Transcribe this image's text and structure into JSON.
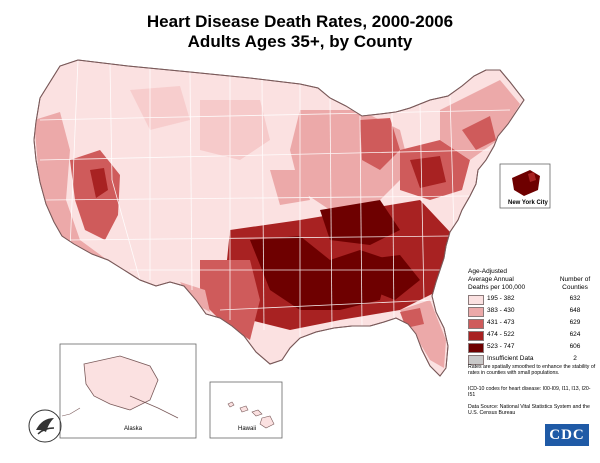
{
  "title_line1": "Heart Disease Death Rates, 2000-2006",
  "title_line2": "Adults Ages 35+, by County",
  "legend": {
    "header_left": [
      "Age-Adjusted",
      "Average Annual",
      "Deaths per 100,000"
    ],
    "header_right": [
      "Number of",
      "Counties"
    ],
    "rows": [
      {
        "range": "195 - 382",
        "count": "632",
        "color": "#fbe1e1"
      },
      {
        "range": "383 - 430",
        "count": "648",
        "color": "#eca9a9"
      },
      {
        "range": "431 - 473",
        "count": "629",
        "color": "#cf5b5b"
      },
      {
        "range": "474 - 522",
        "count": "624",
        "color": "#a82222"
      },
      {
        "range": "523 - 747",
        "count": "606",
        "color": "#6e0000"
      },
      {
        "range": "Insufficient Data",
        "count": "2",
        "color": "#c9c9c9"
      }
    ]
  },
  "notes": {
    "note1": "Rates are spatially smoothed to enhance the stability of rates in counties with small populations.",
    "note2": "ICD-10 codes for heart disease: I00-I09, I11, I13, I20-I51",
    "note3": "Data Source: National Vital Statistics System and the U.S. Census Bureau"
  },
  "insets": {
    "alaska": "Alaska",
    "hawaii": "Hawaii",
    "nyc": "New York City"
  },
  "logo_text": "CDC",
  "colors": {
    "state_border": "#ffffff",
    "outline": "#7a5a5a"
  }
}
